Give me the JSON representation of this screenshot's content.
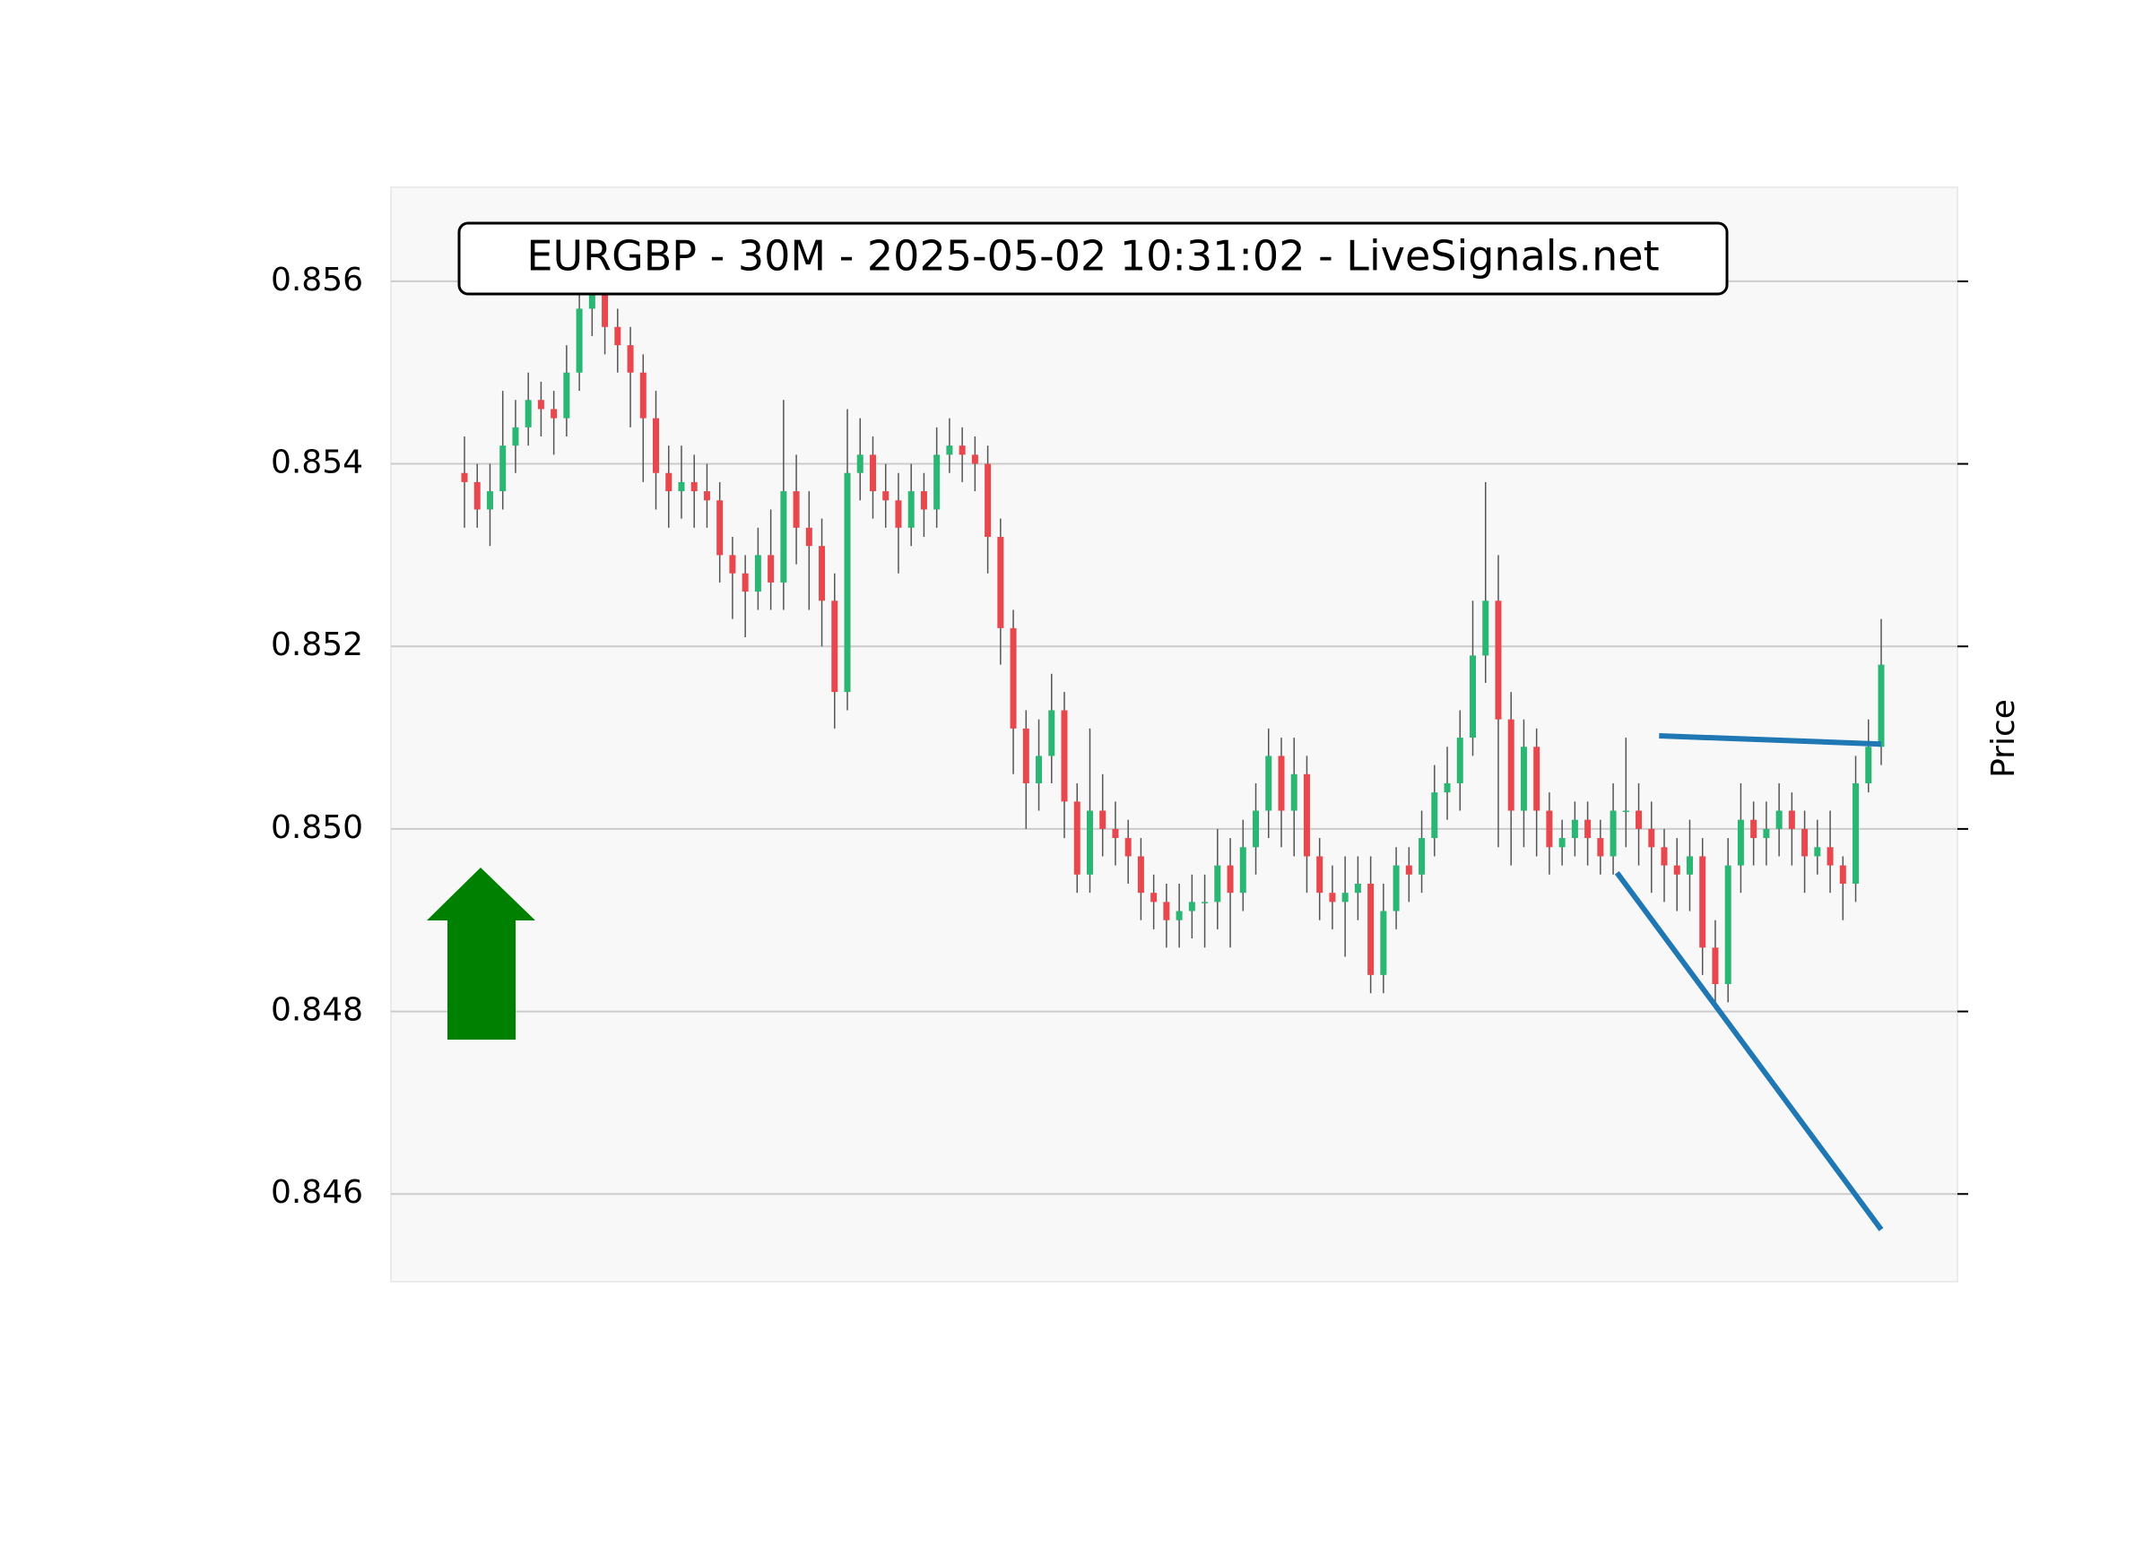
{
  "chart_data": {
    "type": "candlestick",
    "title": "EURGBP - 30M - 2025-05-02 10:31:02 - LiveSignals.net",
    "y_label": "Price",
    "up_color": "#2ab673",
    "down_color": "#e8474d",
    "open": [
      0.8539,
      0.8538,
      0.8535,
      0.8537,
      0.8542,
      0.8544,
      0.8547,
      0.8546,
      0.8545,
      0.855,
      0.8557,
      0.8559,
      0.8555,
      0.8553,
      0.855,
      0.8545,
      0.8539,
      0.8537,
      0.8538,
      0.8537,
      0.8536,
      0.853,
      0.8528,
      0.8526,
      0.853,
      0.8527,
      0.8537,
      0.8533,
      0.8531,
      0.8525,
      0.8515,
      0.8539,
      0.8541,
      0.8537,
      0.8536,
      0.8533,
      0.8537,
      0.8535,
      0.8541,
      0.8542,
      0.8541,
      0.854,
      0.8532,
      0.8522,
      0.8511,
      0.8505,
      0.8508,
      0.8513,
      0.8503,
      0.8495,
      0.8502,
      0.85,
      0.8499,
      0.8497,
      0.8493,
      0.8492,
      0.849,
      0.8491,
      0.8492,
      0.8492,
      0.8496,
      0.8493,
      0.8498,
      0.8502,
      0.8508,
      0.8502,
      0.8506,
      0.8497,
      0.8493,
      0.8492,
      0.8493,
      0.8494,
      0.8484,
      0.8491,
      0.8496,
      0.8495,
      0.8499,
      0.8504,
      0.8505,
      0.851,
      0.8519,
      0.8525,
      0.8512,
      0.8502,
      0.8509,
      0.8502,
      0.8498,
      0.8499,
      0.8501,
      0.8499,
      0.8497,
      0.8502,
      0.8502,
      0.85,
      0.8498,
      0.8496,
      0.8495,
      0.8497,
      0.8487,
      0.8483,
      0.8496,
      0.8501,
      0.8499,
      0.85,
      0.8502,
      0.85,
      0.8497,
      0.8498,
      0.8496,
      0.8494,
      0.8505,
      0.8509
    ],
    "high": [
      0.8543,
      0.854,
      0.854,
      0.8548,
      0.8547,
      0.855,
      0.8549,
      0.8548,
      0.8553,
      0.856,
      0.8561,
      0.8561,
      0.8557,
      0.8555,
      0.8552,
      0.8548,
      0.8542,
      0.8542,
      0.8541,
      0.854,
      0.8538,
      0.8532,
      0.853,
      0.8533,
      0.8535,
      0.8547,
      0.8541,
      0.8537,
      0.8534,
      0.8528,
      0.8546,
      0.8545,
      0.8543,
      0.854,
      0.8539,
      0.854,
      0.8539,
      0.8544,
      0.8545,
      0.8544,
      0.8543,
      0.8542,
      0.8534,
      0.8524,
      0.8513,
      0.8512,
      0.8517,
      0.8515,
      0.8505,
      0.8511,
      0.8506,
      0.8503,
      0.8501,
      0.8499,
      0.8495,
      0.8494,
      0.8494,
      0.8495,
      0.8495,
      0.85,
      0.8499,
      0.8501,
      0.8505,
      0.8511,
      0.851,
      0.851,
      0.8508,
      0.8499,
      0.8496,
      0.8497,
      0.8497,
      0.8497,
      0.8494,
      0.8498,
      0.8498,
      0.8502,
      0.8507,
      0.8509,
      0.8513,
      0.8525,
      0.8538,
      0.853,
      0.8515,
      0.8512,
      0.8511,
      0.8504,
      0.8501,
      0.8503,
      0.8503,
      0.8501,
      0.8505,
      0.851,
      0.8505,
      0.8503,
      0.85,
      0.8499,
      0.8501,
      0.8499,
      0.849,
      0.8499,
      0.8505,
      0.8503,
      0.8503,
      0.8505,
      0.8504,
      0.8502,
      0.8501,
      0.8502,
      0.8497,
      0.8508,
      0.8512,
      0.8523
    ],
    "low": [
      0.8533,
      0.8533,
      0.8531,
      0.8535,
      0.8539,
      0.8542,
      0.8543,
      0.8541,
      0.8543,
      0.8548,
      0.8554,
      0.8552,
      0.855,
      0.8544,
      0.8538,
      0.8535,
      0.8533,
      0.8534,
      0.8533,
      0.8533,
      0.8527,
      0.8523,
      0.8521,
      0.8524,
      0.8524,
      0.8524,
      0.8529,
      0.8524,
      0.852,
      0.8511,
      0.8513,
      0.8536,
      0.8534,
      0.8533,
      0.8528,
      0.8531,
      0.8532,
      0.8533,
      0.8539,
      0.8538,
      0.8537,
      0.8528,
      0.8518,
      0.8506,
      0.85,
      0.8502,
      0.8505,
      0.8499,
      0.8493,
      0.8493,
      0.8497,
      0.8496,
      0.8494,
      0.849,
      0.8489,
      0.8487,
      0.8487,
      0.8488,
      0.8487,
      0.8489,
      0.8487,
      0.8491,
      0.8495,
      0.8499,
      0.8498,
      0.8497,
      0.8493,
      0.849,
      0.8489,
      0.8486,
      0.849,
      0.8482,
      0.8482,
      0.8489,
      0.8492,
      0.8493,
      0.8497,
      0.8501,
      0.8502,
      0.8508,
      0.8516,
      0.8498,
      0.8496,
      0.8498,
      0.8497,
      0.8495,
      0.8496,
      0.8497,
      0.8496,
      0.8495,
      0.8495,
      0.8498,
      0.8496,
      0.8493,
      0.8492,
      0.8491,
      0.8491,
      0.8484,
      0.8481,
      0.8481,
      0.8493,
      0.8496,
      0.8496,
      0.8497,
      0.8496,
      0.8493,
      0.8495,
      0.8493,
      0.849,
      0.8492,
      0.8504,
      0.8507
    ],
    "close": [
      0.8538,
      0.8535,
      0.8537,
      0.8542,
      0.8544,
      0.8547,
      0.8546,
      0.8545,
      0.855,
      0.8557,
      0.8559,
      0.8555,
      0.8553,
      0.855,
      0.8545,
      0.8539,
      0.8537,
      0.8538,
      0.8537,
      0.8536,
      0.853,
      0.8528,
      0.8526,
      0.853,
      0.8527,
      0.8537,
      0.8533,
      0.8531,
      0.8525,
      0.8515,
      0.8539,
      0.8541,
      0.8537,
      0.8536,
      0.8533,
      0.8537,
      0.8535,
      0.8541,
      0.8542,
      0.8541,
      0.854,
      0.8532,
      0.8522,
      0.8511,
      0.8505,
      0.8508,
      0.8513,
      0.8503,
      0.8495,
      0.8502,
      0.85,
      0.8499,
      0.8497,
      0.8493,
      0.8492,
      0.849,
      0.8491,
      0.8492,
      0.8492,
      0.8496,
      0.8493,
      0.8498,
      0.8502,
      0.8508,
      0.8502,
      0.8506,
      0.8497,
      0.8493,
      0.8492,
      0.8493,
      0.8494,
      0.8484,
      0.8491,
      0.8496,
      0.8495,
      0.8499,
      0.8504,
      0.8505,
      0.851,
      0.8519,
      0.8525,
      0.8512,
      0.8502,
      0.8509,
      0.8502,
      0.8498,
      0.8499,
      0.8501,
      0.8499,
      0.8497,
      0.8502,
      0.8502,
      0.85,
      0.8498,
      0.8496,
      0.8495,
      0.8497,
      0.8487,
      0.8483,
      0.8496,
      0.8501,
      0.8499,
      0.85,
      0.8502,
      0.85,
      0.8497,
      0.8498,
      0.8496,
      0.8494,
      0.8505,
      0.8509,
      0.8518
    ],
    "trend_lines": [
      {
        "color": "#1f77b4",
        "x": [
          93.6,
          111
        ],
        "y": [
          0.85102,
          0.85093
        ]
      },
      {
        "color": "#1f77b4",
        "x": [
          90.3,
          111
        ],
        "y": [
          0.84952,
          0.84561
        ]
      }
    ],
    "ylim": [
      0.84504,
      0.85703
    ],
    "yticks": [
      0.846,
      0.848,
      {
        "value": 0.85,
        "label": "0.850"
      },
      0.852,
      0.854,
      0.856
    ],
    "grid": true
  }
}
